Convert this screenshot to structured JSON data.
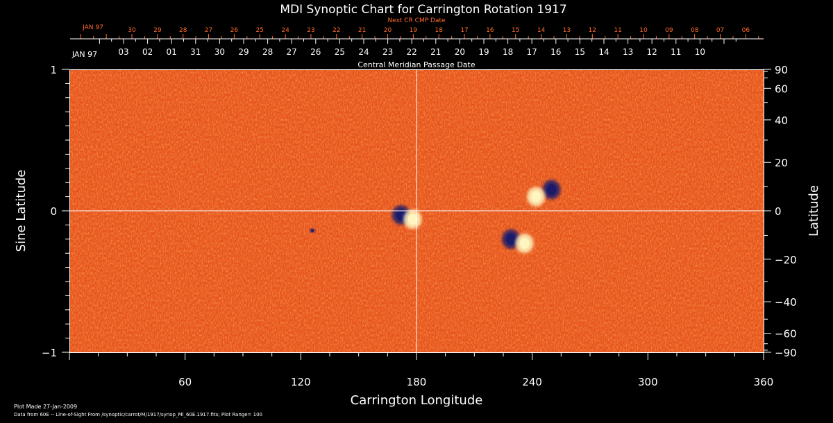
{
  "chart_data": {
    "type": "heatmap",
    "title": "MDI Synoptic Chart for Carrington Rotation 1917",
    "xlabel": "Carrington Longitude",
    "ylabel_left": "Sine Latitude",
    "ylabel_right": "Latitude",
    "xlim": [
      0,
      360
    ],
    "ylim": [
      -1,
      1
    ],
    "x_ticks": [
      "60",
      "120",
      "180",
      "240",
      "300",
      "360"
    ],
    "y_left_ticks": [
      "1",
      "0",
      "−1"
    ],
    "y_right_ticks": [
      "90",
      "60",
      "40",
      "20",
      "0",
      "−20",
      "−40",
      "−60",
      "−90"
    ],
    "y_right_tick_values": [
      90,
      60,
      40,
      20,
      0,
      -20,
      -40,
      -60,
      -90
    ],
    "cmp_axis_label": "Central Meridian Passage Date",
    "cmp_month": "JAN 97",
    "cmp_dates": [
      "03",
      "02",
      "01",
      "31",
      "30",
      "29",
      "28",
      "27",
      "26",
      "25",
      "24",
      "23",
      "22",
      "21",
      "20",
      "19",
      "18",
      "17",
      "16",
      "15",
      "14",
      "13",
      "12",
      "11",
      "10"
    ],
    "next_cmp_label": "Next CR CMP Date",
    "next_cmp_month": "JAN 97",
    "next_cmp_dates": [
      "30",
      "29",
      "28",
      "27",
      "26",
      "25",
      "24",
      "23",
      "22",
      "21",
      "20",
      "19",
      "18",
      "17",
      "16",
      "15",
      "14",
      "13",
      "12",
      "11",
      "10",
      "09",
      "08",
      "07",
      "06"
    ],
    "reference_lines": {
      "longitude": 180,
      "sine_latitude": 0
    },
    "active_regions": [
      {
        "longitude": 172,
        "sine_latitude": -0.03,
        "polarity": "negative"
      },
      {
        "longitude": 178,
        "sine_latitude": -0.06,
        "polarity": "positive"
      },
      {
        "longitude": 250,
        "sine_latitude": 0.15,
        "polarity": "negative"
      },
      {
        "longitude": 242,
        "sine_latitude": 0.1,
        "polarity": "positive"
      },
      {
        "longitude": 229,
        "sine_latitude": -0.2,
        "polarity": "negative"
      },
      {
        "longitude": 236,
        "sine_latitude": -0.23,
        "polarity": "positive"
      },
      {
        "longitude": 126,
        "sine_latitude": -0.14,
        "polarity": "negative"
      }
    ],
    "colors": {
      "background": "#000000",
      "field_base": "#e8541e",
      "positive": "#fff5c0",
      "negative": "#1a1a6a",
      "next_cmp": "#ff6a2a"
    }
  },
  "footer": {
    "plot_made": "Plot Made 27-Jan-2009",
    "data_source": "Data from 60E -- Line-of-Sight From /synoptic/carrot/M/1917/synop_Ml_60E.1917.fits; Plot Range= 100"
  }
}
